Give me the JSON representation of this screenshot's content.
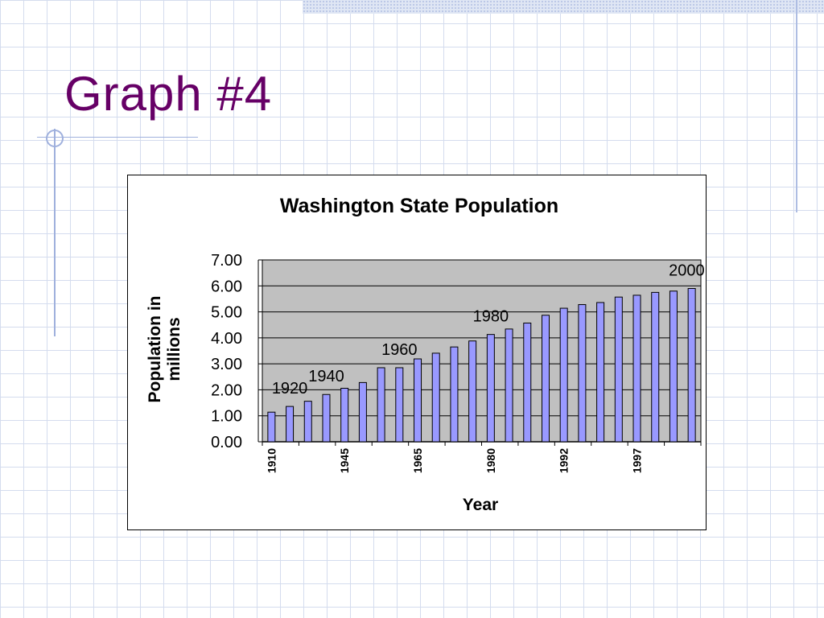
{
  "slide": {
    "title": "Graph #4"
  },
  "colors": {
    "title": "#660066",
    "bar": "#9999ff",
    "plot_bg": "#c0c0c0"
  },
  "chart_data": {
    "type": "bar",
    "title": "Washington State Population",
    "xlabel": "Year",
    "ylabel": "Population in millions",
    "ylim": [
      0,
      7
    ],
    "y_ticks": [
      "0.00",
      "1.00",
      "2.00",
      "3.00",
      "4.00",
      "5.00",
      "6.00",
      "7.00"
    ],
    "x_tick_labels": [
      {
        "bar": 0,
        "label": "1910"
      },
      {
        "bar": 4,
        "label": "1945"
      },
      {
        "bar": 8,
        "label": "1965"
      },
      {
        "bar": 12,
        "label": "1980"
      },
      {
        "bar": 16,
        "label": "1992"
      },
      {
        "bar": 20,
        "label": "1997"
      }
    ],
    "values": [
      1.14,
      1.36,
      1.56,
      1.82,
      2.06,
      2.28,
      2.85,
      2.85,
      3.19,
      3.41,
      3.65,
      3.88,
      4.13,
      4.34,
      4.57,
      4.87,
      5.14,
      5.28,
      5.36,
      5.57,
      5.64,
      5.75,
      5.8,
      5.9
    ],
    "annotations": [
      {
        "bar": 1,
        "text": "1920"
      },
      {
        "bar": 3,
        "text": "1940"
      },
      {
        "bar": 7,
        "text": "1960"
      },
      {
        "bar": 12,
        "text": "1980"
      },
      {
        "bar": 23,
        "text": "2000"
      }
    ],
    "grid": true
  }
}
